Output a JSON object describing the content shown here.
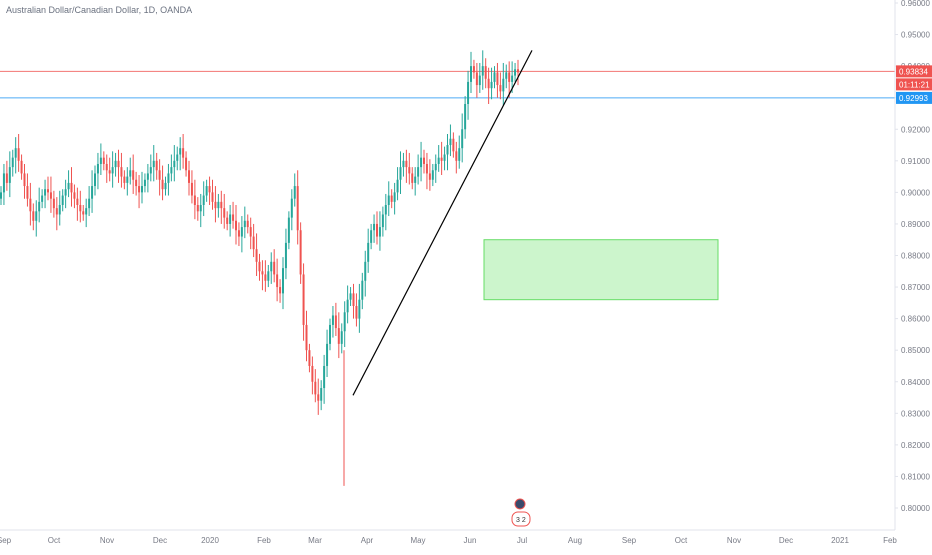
{
  "header": {
    "title": "Australian Dollar/Canadian Dollar, 1D, OANDA"
  },
  "chart_data": {
    "type": "candlestick",
    "symbol": "Australian Dollar/Canadian Dollar",
    "interval": "1D",
    "source": "OANDA",
    "ylim": [
      0.795,
      0.965
    ],
    "y_ticks": [
      "0.96000",
      "0.95000",
      "0.94000",
      "0.93000",
      "0.92000",
      "0.91000",
      "0.90000",
      "0.89000",
      "0.88000",
      "0.87000",
      "0.86000",
      "0.85000",
      "0.84000",
      "0.83000",
      "0.82000",
      "0.81000",
      "0.80000"
    ],
    "x_ticks": [
      "Sep",
      "Oct",
      "Nov",
      "Dec",
      "2020",
      "Feb",
      "Mar",
      "Apr",
      "May",
      "Jun",
      "Jul",
      "Aug",
      "Sep",
      "Oct",
      "Nov",
      "Dec",
      "2021",
      "Feb"
    ],
    "price_lines": [
      {
        "value": 0.93834,
        "label": "0.93834",
        "color": "#ef5350"
      },
      {
        "value": 0.92993,
        "label": "0.92993",
        "color": "#2196f3"
      }
    ],
    "countdown": "01:11:21",
    "trendline": {
      "from": [
        "Mar 23",
        0.8357
      ],
      "to": [
        "Jul 2",
        0.945
      ]
    },
    "zone": {
      "x": [
        "Jun 11",
        "Oct 21"
      ],
      "y": [
        0.885,
        0.866
      ],
      "color": "#90ee90"
    },
    "series": [
      {
        "values": [
          0.9,
          0.906,
          0.903,
          0.908,
          0.911,
          0.914,
          0.91,
          0.906,
          0.902,
          0.898,
          0.894,
          0.891,
          0.894,
          0.897,
          0.899,
          0.901,
          0.9,
          0.898,
          0.895,
          0.893,
          0.896,
          0.899,
          0.901,
          0.903,
          0.9,
          0.898,
          0.896,
          0.894,
          0.893,
          0.895,
          0.898,
          0.902,
          0.906,
          0.909,
          0.911,
          0.909,
          0.907,
          0.906,
          0.908,
          0.91,
          0.908,
          0.905,
          0.903,
          0.905,
          0.907,
          0.904,
          0.902,
          0.9,
          0.902,
          0.904,
          0.906,
          0.908,
          0.91,
          0.907,
          0.904,
          0.901,
          0.903,
          0.906,
          0.908,
          0.91,
          0.912,
          0.914,
          0.911,
          0.907,
          0.903,
          0.899,
          0.896,
          0.894,
          0.896,
          0.899,
          0.902,
          0.9,
          0.897,
          0.895,
          0.897,
          0.895,
          0.892,
          0.89,
          0.893,
          0.891,
          0.888,
          0.886,
          0.889,
          0.891,
          0.889,
          0.886,
          0.882,
          0.878,
          0.875,
          0.874,
          0.872,
          0.875,
          0.878,
          0.874,
          0.87,
          0.868,
          0.876,
          0.884,
          0.892,
          0.898,
          0.902,
          0.888,
          0.874,
          0.858,
          0.85,
          0.845,
          0.84,
          0.836,
          0.834,
          0.838,
          0.845,
          0.852,
          0.858,
          0.861,
          0.857,
          0.852,
          0.856,
          0.862,
          0.866,
          0.868,
          0.864,
          0.86,
          0.866,
          0.872,
          0.878,
          0.884,
          0.888,
          0.89,
          0.886,
          0.889,
          0.893,
          0.896,
          0.899,
          0.897,
          0.9,
          0.904,
          0.908,
          0.91,
          0.908,
          0.906,
          0.903,
          0.905,
          0.908,
          0.911,
          0.909,
          0.906,
          0.904,
          0.907,
          0.909,
          0.911,
          0.91,
          0.912,
          0.915,
          0.917,
          0.913,
          0.91,
          0.914,
          0.92,
          0.928,
          0.935,
          0.94,
          0.938,
          0.934,
          0.937,
          0.94,
          0.936,
          0.933,
          0.935,
          0.938,
          0.934,
          0.932,
          0.936,
          0.938,
          0.935,
          0.937,
          0.939,
          0.938
        ]
      }
    ],
    "annotation_badge": "3 2",
    "colors": {
      "up": "#26a69a",
      "down": "#ef5350",
      "axis": "#e0e3eb",
      "text": "#787b86",
      "trendline": "#000000"
    }
  }
}
